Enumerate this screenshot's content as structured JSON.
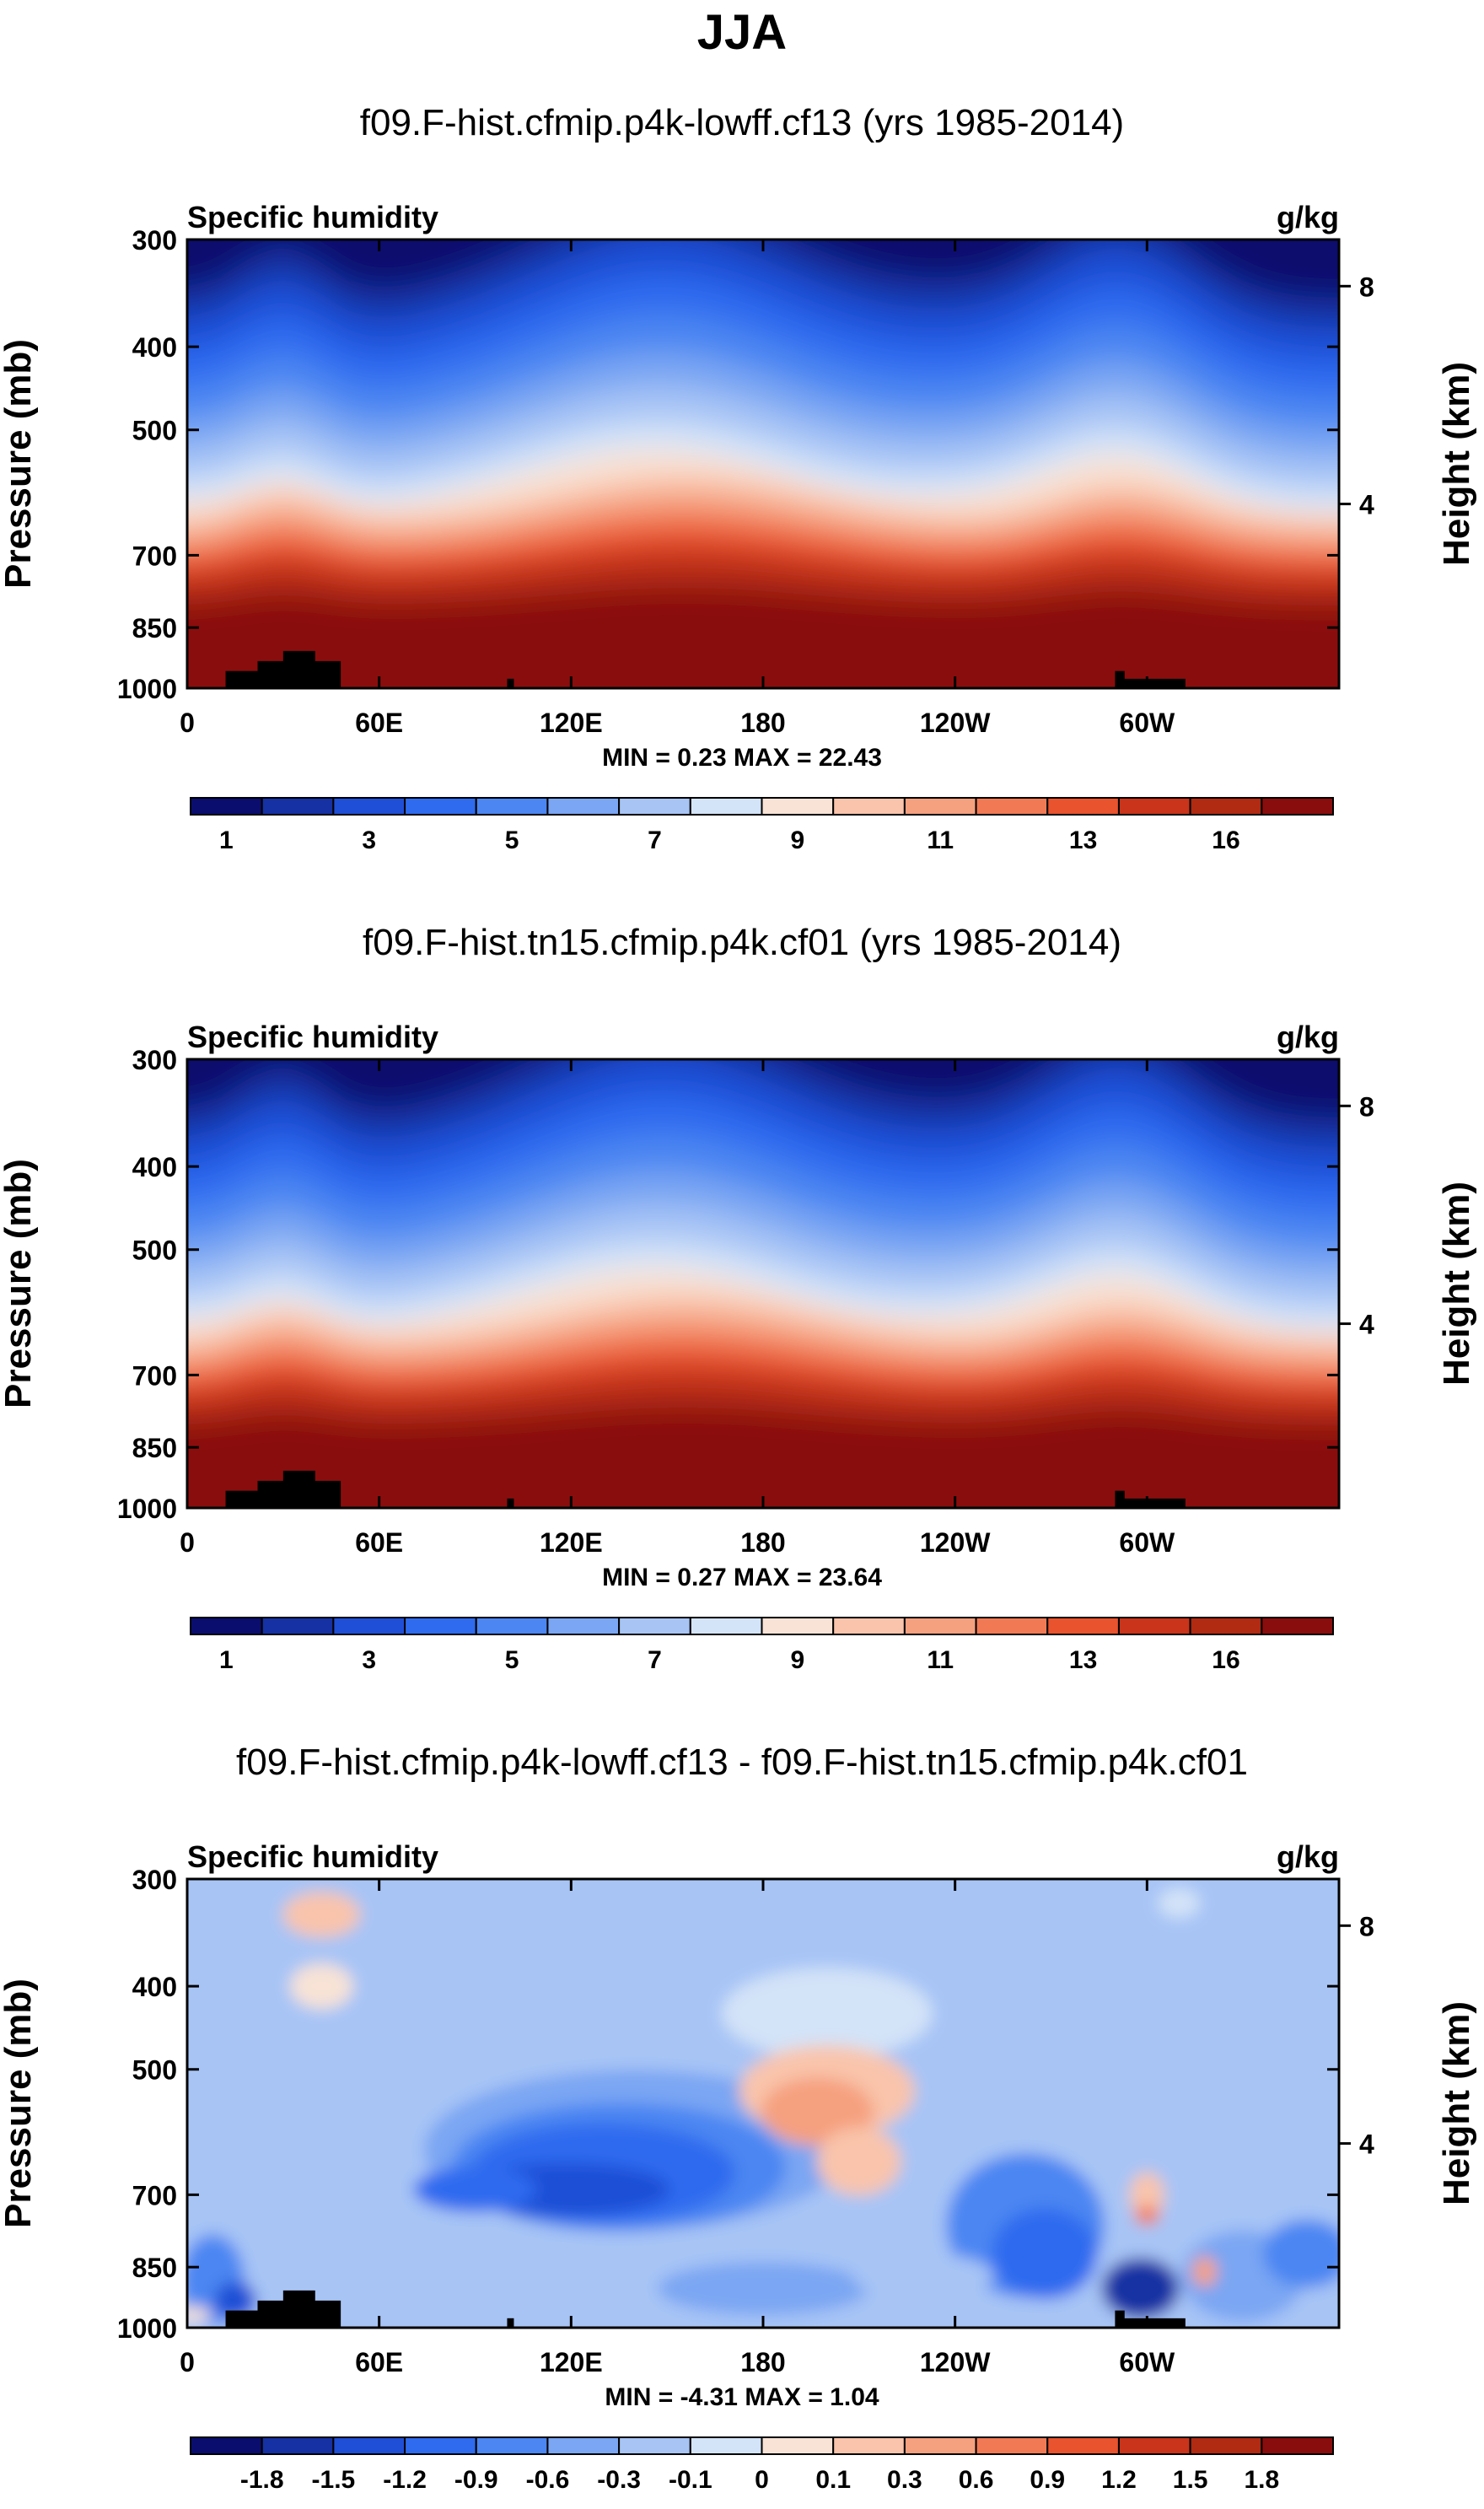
{
  "title": "JJA",
  "chart_data": [
    {
      "type": "heatmap",
      "title": "f09.F-hist.cfmip.p4k-lowff.cf13 (yrs 1985-2014)",
      "left_label": "Specific humidity",
      "right_label": "g/kg",
      "ylabel": "Pressure (mb)",
      "y2label": "Height (km)",
      "x_ticks": [
        "0",
        "60E",
        "120E",
        "180",
        "120W",
        "60W"
      ],
      "x_tick_lon": [
        0,
        60,
        120,
        180,
        240,
        300
      ],
      "x_range": [
        0,
        360
      ],
      "y_ticks": [
        "300",
        "400",
        "500",
        "700",
        "850",
        "1000"
      ],
      "y_tick_p": [
        300,
        400,
        500,
        700,
        850,
        1000
      ],
      "y_range": [
        300,
        1000
      ],
      "y2_ticks": [
        "8",
        "4"
      ],
      "y2_tick_p": [
        340,
        610
      ],
      "minmax": "MIN =   0.23  MAX =  22.43",
      "colorbar_labels": [
        "1",
        "3",
        "5",
        "7",
        "9",
        "11",
        "13",
        "16"
      ],
      "colorbar_levels": [
        1,
        2,
        3,
        4,
        5,
        6,
        7,
        8,
        9,
        10,
        11,
        12,
        13,
        14,
        16
      ],
      "colors": [
        "#0a0d6e",
        "#1531a3",
        "#1f4fd6",
        "#2f6bef",
        "#4b86f2",
        "#7aa6f3",
        "#a7c4f5",
        "#d3e3f8",
        "#f8e3d6",
        "#f9c4ab",
        "#f5a07f",
        "#f17a55",
        "#e9532d",
        "#c9341a",
        "#b12a12",
        "#8a0d0d"
      ],
      "min": 0.23,
      "max": 22.43
    },
    {
      "type": "heatmap",
      "title": "f09.F-hist.tn15.cfmip.p4k.cf01 (yrs 1985-2014)",
      "left_label": "Specific humidity",
      "right_label": "g/kg",
      "ylabel": "Pressure (mb)",
      "y2label": "Height (km)",
      "x_ticks": [
        "0",
        "60E",
        "120E",
        "180",
        "120W",
        "60W"
      ],
      "x_tick_lon": [
        0,
        60,
        120,
        180,
        240,
        300
      ],
      "x_range": [
        0,
        360
      ],
      "y_ticks": [
        "300",
        "400",
        "500",
        "700",
        "850",
        "1000"
      ],
      "y_tick_p": [
        300,
        400,
        500,
        700,
        850,
        1000
      ],
      "y_range": [
        300,
        1000
      ],
      "y2_ticks": [
        "8",
        "4"
      ],
      "y2_tick_p": [
        340,
        610
      ],
      "minmax": "MIN =   0.27  MAX =  23.64",
      "colorbar_labels": [
        "1",
        "3",
        "5",
        "7",
        "9",
        "11",
        "13",
        "16"
      ],
      "colorbar_levels": [
        1,
        2,
        3,
        4,
        5,
        6,
        7,
        8,
        9,
        10,
        11,
        12,
        13,
        14,
        16
      ],
      "colors": [
        "#0a0d6e",
        "#1531a3",
        "#1f4fd6",
        "#2f6bef",
        "#4b86f2",
        "#7aa6f3",
        "#a7c4f5",
        "#d3e3f8",
        "#f8e3d6",
        "#f9c4ab",
        "#f5a07f",
        "#f17a55",
        "#e9532d",
        "#c9341a",
        "#b12a12",
        "#8a0d0d"
      ],
      "min": 0.27,
      "max": 23.64
    },
    {
      "type": "heatmap",
      "title": "f09.F-hist.cfmip.p4k-lowff.cf13 - f09.F-hist.tn15.cfmip.p4k.cf01",
      "left_label": "Specific humidity",
      "right_label": "g/kg",
      "ylabel": "Pressure (mb)",
      "y2label": "Height (km)",
      "x_ticks": [
        "0",
        "60E",
        "120E",
        "180",
        "120W",
        "60W"
      ],
      "x_tick_lon": [
        0,
        60,
        120,
        180,
        240,
        300
      ],
      "x_range": [
        0,
        360
      ],
      "y_ticks": [
        "300",
        "400",
        "500",
        "700",
        "850",
        "1000"
      ],
      "y_tick_p": [
        300,
        400,
        500,
        700,
        850,
        1000
      ],
      "y_range": [
        300,
        1000
      ],
      "y2_ticks": [
        "8",
        "4"
      ],
      "y2_tick_p": [
        340,
        610
      ],
      "minmax": "MIN =  -4.31  MAX =   1.04",
      "colorbar_labels": [
        "-1.8",
        "-1.5",
        "-1.2",
        "-0.9",
        "-0.6",
        "-0.3",
        "-0.1",
        "0",
        "0.1",
        "0.3",
        "0.6",
        "0.9",
        "1.2",
        "1.5",
        "1.8"
      ],
      "colorbar_levels": [
        -1.8,
        -1.5,
        -1.2,
        -0.9,
        -0.6,
        -0.3,
        -0.1,
        0,
        0.1,
        0.3,
        0.6,
        0.9,
        1.2,
        1.5,
        1.8
      ],
      "colors": [
        "#0a0d6e",
        "#1531a3",
        "#1f4fd6",
        "#2f6bef",
        "#4b86f2",
        "#7aa6f3",
        "#a7c4f5",
        "#d3e3f8",
        "#f8e3d6",
        "#f9c4ab",
        "#f5a07f",
        "#f17a55",
        "#e9532d",
        "#c9341a",
        "#b12a12",
        "#8a0d0d"
      ],
      "min": -4.31,
      "max": 1.04
    }
  ]
}
